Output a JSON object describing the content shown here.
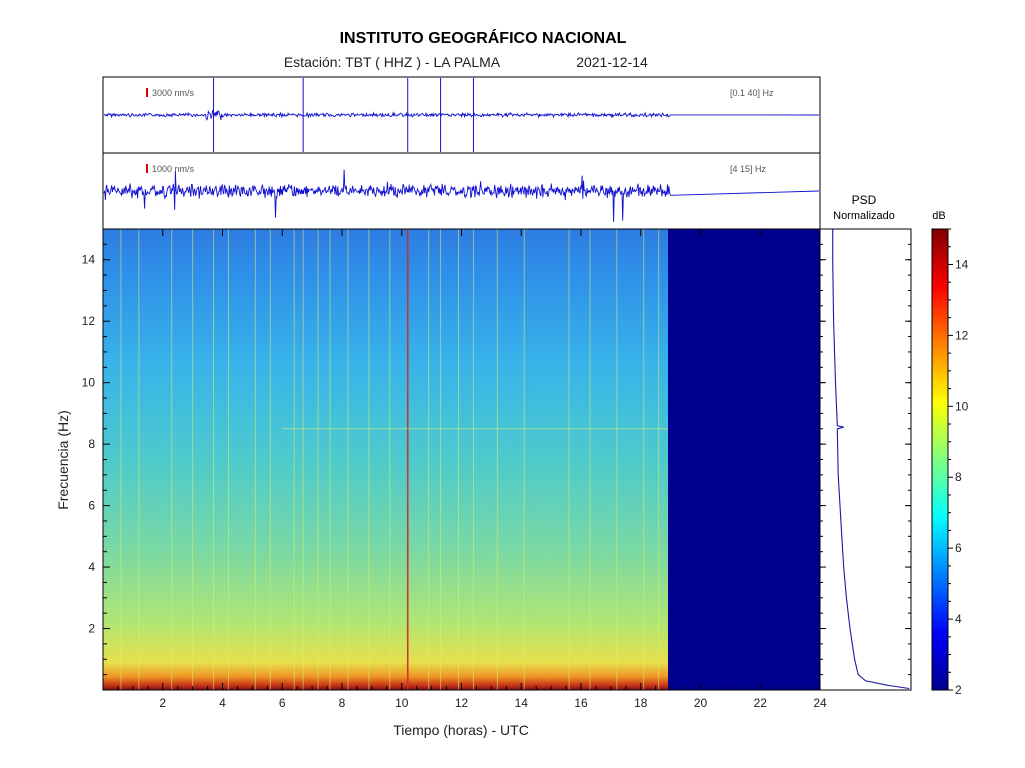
{
  "header": {
    "title": "INSTITUTO GEOGRÁFICO NACIONAL",
    "station": "Estación:  TBT ( HHZ ) - LA PALMA",
    "date": "2021-12-14"
  },
  "chart_data": {
    "type": "heatmap",
    "xlabel": "Tiempo (horas) - UTC",
    "ylabel": "Frecuencia  (Hz)",
    "xlim": [
      0,
      24
    ],
    "ylim": [
      0,
      15
    ],
    "x_ticks": [
      2,
      4,
      6,
      8,
      10,
      12,
      14,
      16,
      18,
      20,
      22,
      24
    ],
    "y_ticks": [
      2,
      4,
      6,
      8,
      10,
      12,
      14
    ],
    "data_end_hour": 19,
    "no_data_color": "#00008f",
    "traces": [
      {
        "scale_label": "3000 nm/s",
        "band_label": "[0.1 40]  Hz",
        "marker_color": "#e00000",
        "line_color": "#1010d0",
        "spikes_hours": [
          3.7,
          6.7,
          10.2,
          11.3,
          12.4
        ]
      },
      {
        "scale_label": "1000 nm/s",
        "band_label": "[4 15]  Hz",
        "marker_color": "#e00000",
        "line_color": "#1010d0"
      }
    ],
    "psd": {
      "title": "PSD",
      "subtitle": "Normalizado",
      "line_color": "#1a1aa0",
      "points": [
        [
          0.05,
          0.98
        ],
        [
          0.15,
          0.75
        ],
        [
          0.3,
          0.5
        ],
        [
          0.5,
          0.42
        ],
        [
          1,
          0.38
        ],
        [
          2,
          0.33
        ],
        [
          3,
          0.29
        ],
        [
          4,
          0.26
        ],
        [
          5,
          0.24
        ],
        [
          6,
          0.22
        ],
        [
          7,
          0.2
        ],
        [
          8.5,
          0.19
        ],
        [
          8.55,
          0.26
        ],
        [
          8.6,
          0.19
        ],
        [
          10,
          0.17
        ],
        [
          12,
          0.15
        ],
        [
          14,
          0.14
        ],
        [
          15,
          0.14
        ]
      ]
    },
    "colorbar": {
      "label": "dB",
      "min": 2,
      "max": 15,
      "ticks": [
        2,
        4,
        6,
        8,
        10,
        12,
        14
      ],
      "colors": [
        "#00008f",
        "#0000ff",
        "#0080ff",
        "#00ffff",
        "#80ff80",
        "#ffff00",
        "#ff8000",
        "#ff0000",
        "#800000"
      ]
    },
    "spectrogram": {
      "background_stops": [
        [
          0,
          "#7a0000"
        ],
        [
          0.01,
          "#d42a00"
        ],
        [
          0.03,
          "#ff9a10"
        ],
        [
          0.06,
          "#f6e83a"
        ],
        [
          0.15,
          "#b8ee68"
        ],
        [
          0.3,
          "#7fe09a"
        ],
        [
          0.5,
          "#4cd0c8"
        ],
        [
          0.7,
          "#36b8e8"
        ],
        [
          0.9,
          "#2a90e8"
        ],
        [
          1,
          "#2a7ae0"
        ]
      ],
      "vertical_lines_hours": [
        0.6,
        1.2,
        2.3,
        3.0,
        3.7,
        4.2,
        5.1,
        5.6,
        6.4,
        6.7,
        7.2,
        7.6,
        8.2,
        8.9,
        9.6,
        10.2,
        10.9,
        11.3,
        11.9,
        12.4,
        13.2,
        14.1,
        15.6,
        16.3,
        17.2,
        18.1,
        18.6
      ],
      "hot_line_hour": 10.2,
      "horizontal_feature_hz": 8.5
    }
  }
}
